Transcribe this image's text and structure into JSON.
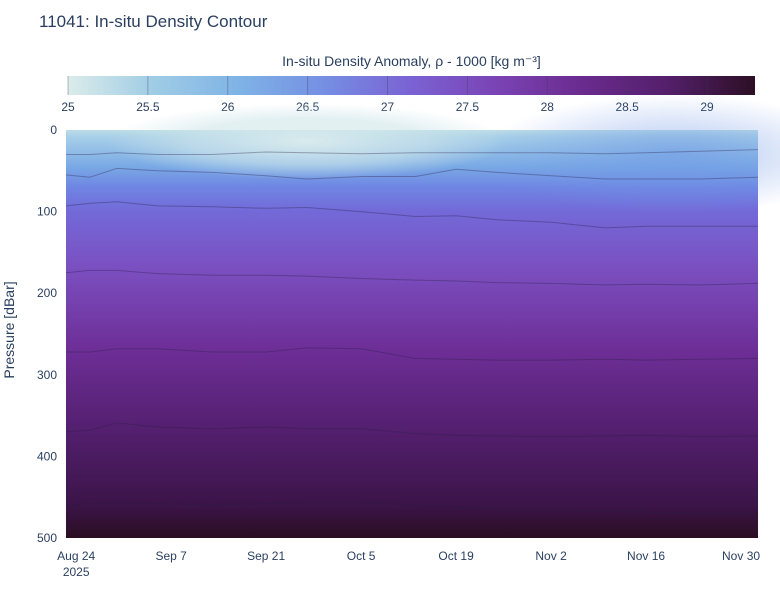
{
  "chart_data": {
    "type": "heatmap",
    "title": "11041: In-situ Density Contour",
    "colorbar": {
      "title_text": "In-situ Density Anomaly, ρ - 1000 [kg m⁻³]",
      "ticks": [
        "25",
        "25.5",
        "26",
        "26.5",
        "27",
        "27.5",
        "28",
        "28.5",
        "29"
      ],
      "range": [
        25,
        29.3
      ],
      "colors": [
        "#dbecea",
        "#9fcce5",
        "#7fb3e6",
        "#758ee3",
        "#7a62d3",
        "#7a43b4",
        "#6a2b8e",
        "#531f6a",
        "#2c0f24"
      ]
    },
    "xaxis": {
      "ticks": [
        {
          "day": 0,
          "label": "Aug 24",
          "sub": "2025"
        },
        {
          "day": 14,
          "label": "Sep 7"
        },
        {
          "day": 28,
          "label": "Sep 21"
        },
        {
          "day": 42,
          "label": "Oct 5"
        },
        {
          "day": 56,
          "label": "Oct 19"
        },
        {
          "day": 70,
          "label": "Nov 2"
        },
        {
          "day": 84,
          "label": "Nov 16"
        },
        {
          "day": 98,
          "label": "Nov 30"
        }
      ],
      "range_days": [
        -1.5,
        100.5
      ],
      "start_date": "Aug 24 2025"
    },
    "yaxis": {
      "label": "Pressure [dBar]",
      "ticks": [
        "0",
        "100",
        "200",
        "300",
        "400",
        "500"
      ],
      "range": [
        0,
        500
      ],
      "reversed": true
    },
    "contours": {
      "x_days": [
        -1.5,
        2,
        6,
        12,
        20,
        28,
        34,
        42,
        50,
        56,
        62,
        70,
        78,
        84,
        92,
        100.5
      ],
      "lines": [
        {
          "level": "26.0",
          "depth": [
            30,
            30,
            28,
            30,
            30,
            27,
            28,
            29,
            28,
            28,
            28,
            28,
            29,
            28,
            26,
            24
          ]
        },
        {
          "level": "26.5",
          "depth": [
            55,
            58,
            47,
            50,
            52,
            56,
            60,
            57,
            57,
            48,
            52,
            56,
            60,
            60,
            60,
            58
          ]
        },
        {
          "level": "27.0",
          "depth": [
            93,
            90,
            88,
            93,
            94,
            96,
            95,
            100,
            106,
            105,
            110,
            113,
            120,
            118,
            118,
            118
          ]
        },
        {
          "level": "27.5",
          "depth": [
            175,
            172,
            172,
            176,
            178,
            178,
            179,
            182,
            184,
            185,
            187,
            188,
            190,
            189,
            190,
            188
          ]
        },
        {
          "level": "28.0",
          "depth": [
            272,
            272,
            268,
            268,
            272,
            272,
            267,
            268,
            280,
            281,
            282,
            282,
            281,
            282,
            281,
            280
          ]
        },
        {
          "level": "28.5",
          "depth": [
            370,
            368,
            359,
            364,
            366,
            364,
            366,
            366,
            372,
            374,
            375,
            376,
            375,
            374,
            376,
            375
          ]
        },
        {
          "level": "29.0",
          "depth": [
            460,
            458,
            456,
            458,
            459,
            458,
            456,
            456,
            460,
            462,
            465,
            466,
            467,
            468,
            470,
            470
          ]
        }
      ]
    }
  }
}
